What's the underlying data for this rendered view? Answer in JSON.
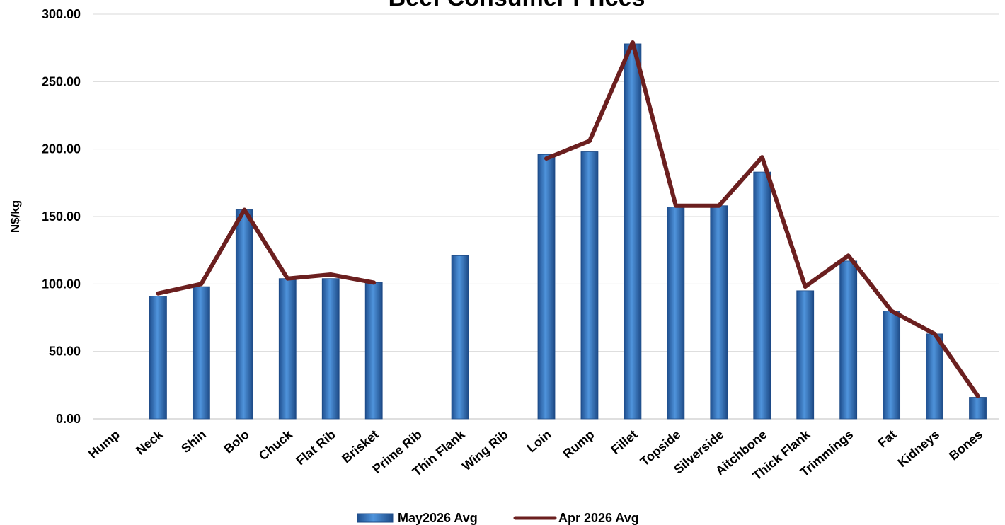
{
  "chart_data": {
    "type": "bar",
    "title": "Beef Consumer Prices",
    "ylabel": "N$/kg",
    "xlabel": "",
    "ylim": [
      0,
      300
    ],
    "ytick_step": 50,
    "ytick_decimals": 2,
    "grid": true,
    "legend_position": "bottom",
    "categories": [
      "Hump",
      "Neck",
      "Shin",
      "Bolo",
      "Chuck",
      "Flat Rib",
      "Brisket",
      "Prime Rib",
      "Thin Flank",
      "Wing Rib",
      "Loin",
      "Rump",
      "Fillet",
      "Topside",
      "Silverside",
      "Aitchbone",
      "Thick Flank",
      "Trimmings",
      "Fat",
      "Kidneys",
      "Bones"
    ],
    "series": [
      {
        "name": "May2026 Avg",
        "kind": "bar",
        "color": "#3f7fc8",
        "values": [
          null,
          91,
          98,
          155,
          104,
          104,
          101,
          null,
          121,
          null,
          196,
          198,
          278,
          157,
          158,
          183,
          95,
          117,
          80,
          63,
          16
        ]
      },
      {
        "name": "Apr 2026 Avg",
        "kind": "line",
        "color": "#6b1f1f",
        "values": [
          null,
          93,
          100,
          155,
          104,
          107,
          101,
          null,
          null,
          null,
          193,
          206,
          279,
          158,
          158,
          194,
          98,
          121,
          80,
          63,
          17
        ]
      }
    ]
  }
}
